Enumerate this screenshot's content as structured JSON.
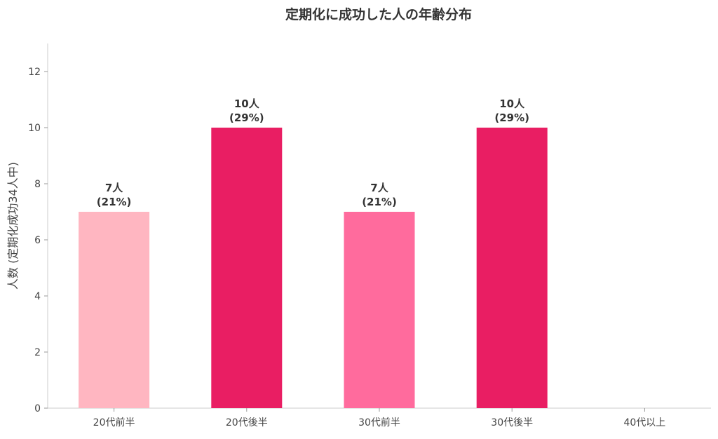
{
  "chart_data": {
    "type": "bar",
    "title": "定期化に成功した人の年齢分布",
    "xlabel": "",
    "ylabel": "人数 (定期化成功34人中)",
    "categories": [
      "20代前半",
      "20代後半",
      "30代前半",
      "30代後半",
      "40代以上"
    ],
    "values": [
      7,
      10,
      7,
      10,
      0
    ],
    "data_labels": [
      [
        "7人",
        "(21%)"
      ],
      [
        "10人",
        "(29%)"
      ],
      [
        "7人",
        "(21%)"
      ],
      [
        "10人",
        "(29%)"
      ],
      null
    ],
    "colors": [
      "#FFB6C1",
      "#E91E63",
      "#FF6B9D",
      "#E91E63",
      "#E91E63"
    ],
    "ylim": [
      0,
      13
    ],
    "yticks": [
      0,
      2,
      4,
      6,
      8,
      10,
      12
    ],
    "grid": false,
    "legend": "none"
  }
}
